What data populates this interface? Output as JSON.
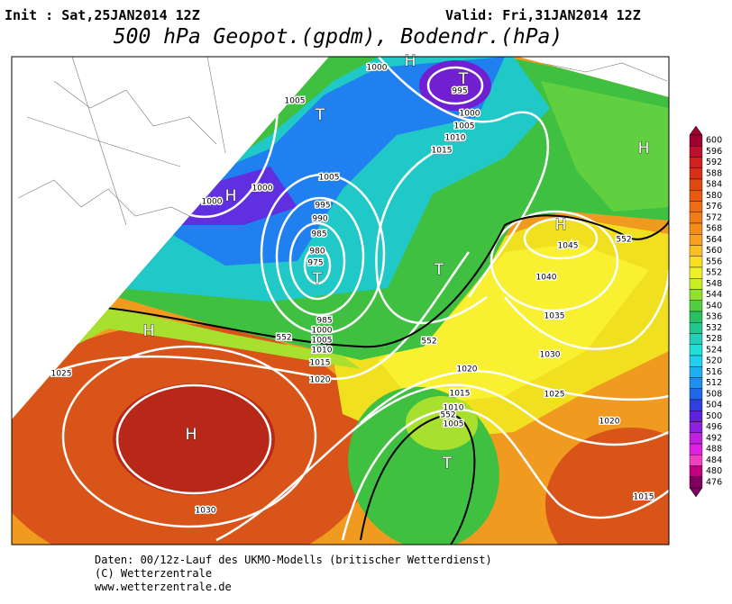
{
  "header": {
    "init": "Init : Sat,25JAN2014 12Z",
    "valid": "Valid: Fri,31JAN2014 12Z",
    "title": "500 hPa Geopot.(gpdm), Bodendr.(hPa)"
  },
  "colorbar": {
    "ticks": [
      600,
      596,
      592,
      588,
      584,
      580,
      576,
      572,
      568,
      564,
      560,
      556,
      552,
      548,
      544,
      540,
      536,
      532,
      528,
      524,
      520,
      516,
      512,
      508,
      504,
      500,
      496,
      492,
      488,
      484,
      480,
      476
    ],
    "colors": [
      "#a00030",
      "#c01030",
      "#d02020",
      "#d83018",
      "#e04810",
      "#e85a10",
      "#ee6c14",
      "#f07c18",
      "#f48c1c",
      "#f8a020",
      "#f8c020",
      "#f8e020",
      "#f0f028",
      "#c8f020",
      "#90e030",
      "#50d040",
      "#28c060",
      "#20c890",
      "#20d0b8",
      "#20e0d8",
      "#20d0f0",
      "#20b0f0",
      "#2090f0",
      "#2068e8",
      "#3040e0",
      "#6020e0",
      "#9020e0",
      "#c020e0",
      "#e020e0",
      "#f040c0",
      "#c00080",
      "#800060"
    ]
  },
  "map": {
    "isobar_labels": [
      "1000",
      "995",
      "1000",
      "1005",
      "1010",
      "1015",
      "1005",
      "1005",
      "1000",
      "1000",
      "995",
      "990",
      "985",
      "980",
      "975",
      "985",
      "1000",
      "1005",
      "1010",
      "1015",
      "1020",
      "552",
      "552",
      "1025",
      "1030",
      "1045",
      "552",
      "1040",
      "1035",
      "1030",
      "1025",
      "1020",
      "1015",
      "1010",
      "1005",
      "552",
      "1020",
      "1015"
    ],
    "pressure_centers": [
      "H",
      "T",
      "T",
      "H",
      "T",
      "H",
      "H",
      "T",
      "H",
      "H",
      "T"
    ]
  },
  "footer": {
    "lines": [
      "Daten: 00/12z-Lauf des UKMO-Modells (britischer Wetterdienst)",
      "(C) Wetterzentrale",
      "www.wetterzentrale.de"
    ]
  }
}
